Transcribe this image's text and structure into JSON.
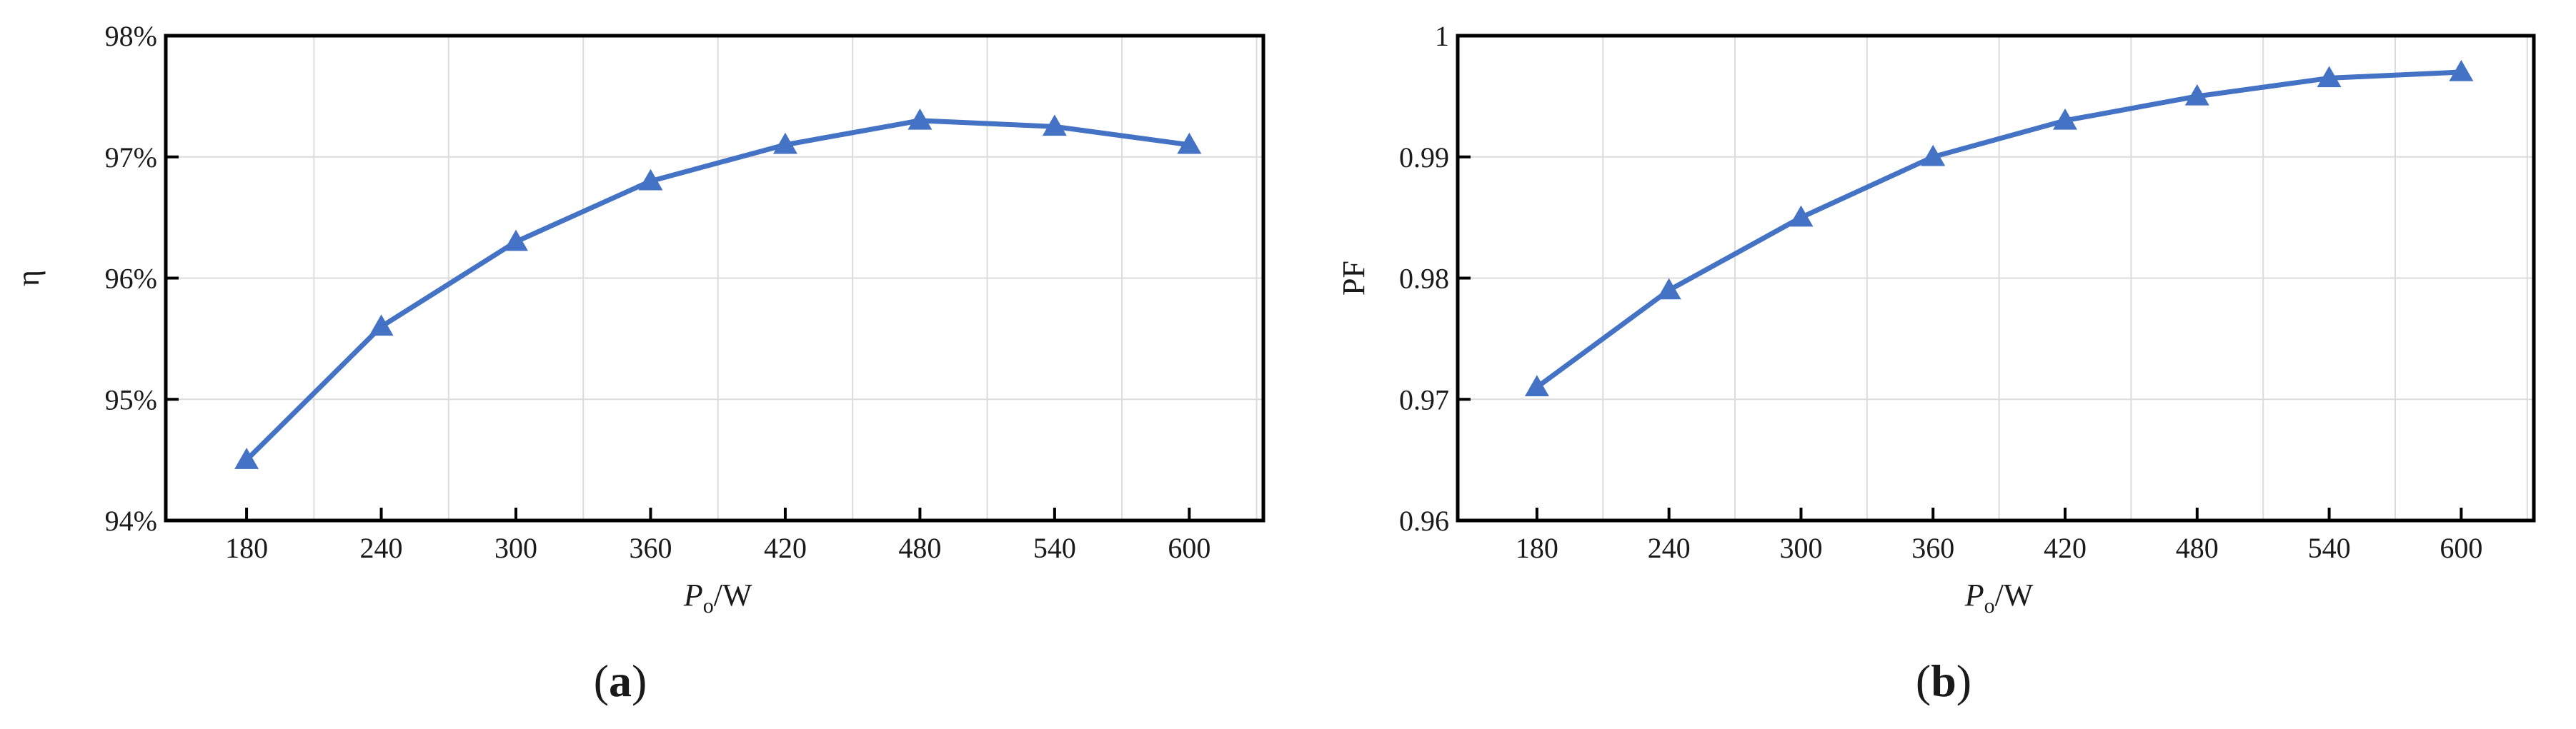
{
  "chart_data": [
    {
      "panel_label": "(a)",
      "panel_label_parts": [
        "(",
        "a",
        ")"
      ],
      "type": "line",
      "xlabel_main": "P",
      "xlabel_sub": "o",
      "xlabel_unit": "/W",
      "ylabel": "η",
      "x_ticks": [
        "180",
        "240",
        "300",
        "360",
        "420",
        "480",
        "540",
        "600"
      ],
      "y_ticks": [
        "94%",
        "95%",
        "96%",
        "97%",
        "98%"
      ],
      "x": [
        180,
        240,
        300,
        360,
        420,
        480,
        540,
        600
      ],
      "ylim": [
        94,
        98
      ],
      "series": [
        {
          "values": [
            94.5,
            95.6,
            96.3,
            96.8,
            97.1,
            97.3,
            97.25,
            97.1
          ]
        }
      ],
      "grid": true,
      "color": "#4472C4"
    },
    {
      "panel_label": "(b)",
      "panel_label_parts": [
        "(",
        "b",
        ")"
      ],
      "type": "line",
      "xlabel_main": "P",
      "xlabel_sub": "o",
      "xlabel_unit": "/W",
      "ylabel": "PF",
      "x_ticks": [
        "180",
        "240",
        "300",
        "360",
        "420",
        "480",
        "540",
        "600"
      ],
      "y_ticks": [
        "0.96",
        "0.97",
        "0.98",
        "0.99",
        "1"
      ],
      "x": [
        180,
        240,
        300,
        360,
        420,
        480,
        540,
        600
      ],
      "ylim": [
        0.96,
        1.0
      ],
      "series": [
        {
          "values": [
            0.971,
            0.979,
            0.985,
            0.99,
            0.993,
            0.995,
            0.9965,
            0.997
          ]
        }
      ],
      "grid": true,
      "color": "#4472C4"
    }
  ]
}
